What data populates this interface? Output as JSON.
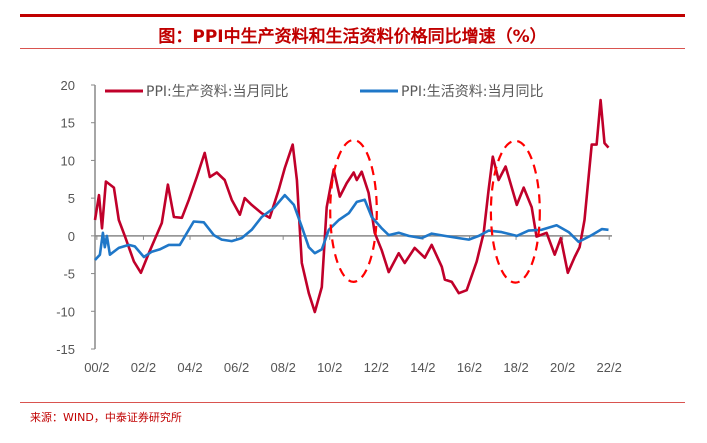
{
  "title": "图：PPI中生产资料和生活资料价格同比增速（%）",
  "source": "来源：WIND，中泰证券研究所",
  "chart_data": {
    "type": "line",
    "title": "图：PPI中生产资料和生活资料价格同比增速（%）",
    "xlabel": "",
    "ylabel": "",
    "ylim": [
      -15,
      20
    ],
    "yticks": [
      20,
      15,
      10,
      5,
      0,
      -5,
      -10,
      -15
    ],
    "xlim": [
      2000.0,
      2022.2
    ],
    "xticks": [
      {
        "v": 2000.08,
        "label": "00/2"
      },
      {
        "v": 2002.08,
        "label": "02/2"
      },
      {
        "v": 2004.08,
        "label": "04/2"
      },
      {
        "v": 2006.08,
        "label": "06/2"
      },
      {
        "v": 2008.08,
        "label": "08/2"
      },
      {
        "v": 2010.08,
        "label": "10/2"
      },
      {
        "v": 2012.08,
        "label": "12/2"
      },
      {
        "v": 2014.08,
        "label": "14/2"
      },
      {
        "v": 2016.08,
        "label": "16/2"
      },
      {
        "v": 2018.08,
        "label": "18/2"
      },
      {
        "v": 2020.08,
        "label": "20/2"
      },
      {
        "v": 2022.08,
        "label": "22/2"
      }
    ],
    "legend_position": "top",
    "series": [
      {
        "name": "PPI:生产资料:当月同比",
        "color": "#c0002a",
        "x": [
          2000.0,
          2000.17,
          2000.3,
          2000.47,
          2000.81,
          2001.02,
          2001.28,
          2001.67,
          2001.97,
          2002.31,
          2002.87,
          2003.13,
          2003.39,
          2003.73,
          2004.03,
          2004.37,
          2004.71,
          2004.93,
          2005.23,
          2005.57,
          2005.87,
          2006.22,
          2006.43,
          2006.73,
          2007.16,
          2007.5,
          2007.89,
          2008.15,
          2008.49,
          2008.67,
          2008.88,
          2009.18,
          2009.44,
          2009.74,
          2009.95,
          2010.25,
          2010.51,
          2010.81,
          2011.11,
          2011.24,
          2011.45,
          2011.75,
          2012.01,
          2012.31,
          2012.61,
          2013.04,
          2013.3,
          2013.73,
          2014.16,
          2014.46,
          2014.89,
          2015.02,
          2015.32,
          2015.62,
          2015.96,
          2016.39,
          2016.69,
          2016.9,
          2017.08,
          2017.33,
          2017.63,
          2018.11,
          2018.41,
          2018.75,
          2018.96,
          2019.39,
          2019.74,
          2020.0,
          2020.3,
          2020.6,
          2020.81,
          2021.02,
          2021.33,
          2021.54,
          2021.71,
          2021.88,
          2022.05
        ],
        "y": [
          2.1,
          5.4,
          1.0,
          7.2,
          6.4,
          2.1,
          0,
          -3.4,
          -4.9,
          -2.3,
          1.7,
          6.8,
          2.5,
          2.4,
          4.8,
          7.8,
          11.0,
          7.8,
          8.4,
          7.4,
          4.8,
          2.8,
          5.0,
          4.1,
          3.0,
          2.4,
          6.1,
          9.0,
          12.1,
          7.4,
          -3.6,
          -7.6,
          -10.1,
          -6.8,
          3.8,
          8.8,
          5.2,
          7.0,
          8.4,
          7.4,
          8.5,
          5.7,
          0.4,
          -1.9,
          -4.8,
          -2.3,
          -3.6,
          -1.6,
          -2.9,
          -1.2,
          -4.1,
          -5.8,
          -6.1,
          -7.6,
          -7.2,
          -3.4,
          0.4,
          6.1,
          10.5,
          7.4,
          9.2,
          4.1,
          6.4,
          3.8,
          -0.1,
          0.4,
          -2.5,
          -0.3,
          -4.9,
          -2.8,
          -1.5,
          2.1,
          12.1,
          12.1,
          18.0,
          12.3,
          11.7
        ]
      },
      {
        "name": "PPI:生活资料:当月同比",
        "color": "#1f77c8",
        "x": [
          2000.0,
          2000.21,
          2000.34,
          2000.42,
          2000.51,
          2000.64,
          2001.02,
          2001.45,
          2001.71,
          2002.1,
          2002.44,
          2002.78,
          2003.17,
          2003.64,
          2004.24,
          2004.67,
          2005.1,
          2005.44,
          2005.87,
          2006.3,
          2006.73,
          2007.16,
          2007.68,
          2008.15,
          2008.54,
          2008.88,
          2009.18,
          2009.44,
          2009.74,
          2010.04,
          2010.47,
          2010.9,
          2011.24,
          2011.58,
          2011.88,
          2012.31,
          2012.61,
          2013.04,
          2013.47,
          2014.03,
          2014.46,
          2015.02,
          2015.62,
          2016.05,
          2016.48,
          2016.9,
          2017.46,
          2018.11,
          2018.62,
          2019.18,
          2019.82,
          2020.34,
          2020.77,
          2021.33,
          2021.76,
          2022.05
        ],
        "y": [
          -3.2,
          -2.5,
          0.4,
          -1.5,
          0,
          -2.5,
          -1.6,
          -1.2,
          -1.4,
          -2.8,
          -2.1,
          -1.8,
          -1.2,
          -1.2,
          1.9,
          1.8,
          0.1,
          -0.5,
          -0.7,
          -0.3,
          0.8,
          2.5,
          3.7,
          5.4,
          4.1,
          1.2,
          -1.5,
          -2.3,
          -1.8,
          0.8,
          2.1,
          3.0,
          4.5,
          4.8,
          2.5,
          1.0,
          0.1,
          0.4,
          0,
          -0.3,
          0.3,
          0,
          -0.3,
          -0.5,
          0,
          0.7,
          0.5,
          0,
          0.7,
          0.8,
          1.4,
          0.5,
          -0.8,
          0.1,
          0.9,
          0.8
        ]
      }
    ],
    "annotations": [
      {
        "type": "dashed-ellipse",
        "color": "#ff0000",
        "cx": 2011.1,
        "cy": 3.3,
        "rx_years": 1.0,
        "ry_units": 9.4
      },
      {
        "type": "dashed-ellipse",
        "color": "#ff0000",
        "cx": 2018.05,
        "cy": 3.2,
        "rx_years": 1.05,
        "ry_units": 9.4
      }
    ]
  }
}
